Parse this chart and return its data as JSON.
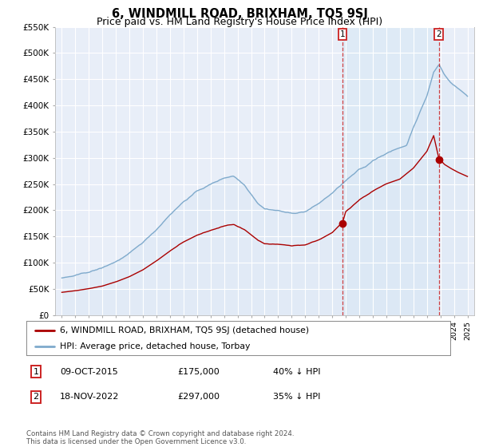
{
  "title": "6, WINDMILL ROAD, BRIXHAM, TQ5 9SJ",
  "subtitle": "Price paid vs. HM Land Registry's House Price Index (HPI)",
  "ylim": [
    0,
    550000
  ],
  "yticks": [
    0,
    50000,
    100000,
    150000,
    200000,
    250000,
    300000,
    350000,
    400000,
    450000,
    500000,
    550000
  ],
  "ytick_labels": [
    "£0",
    "£50K",
    "£100K",
    "£150K",
    "£200K",
    "£250K",
    "£300K",
    "£350K",
    "£400K",
    "£450K",
    "£500K",
    "£550K"
  ],
  "sale1_date": 2015.77,
  "sale1_price": 175000,
  "sale1_label": "09-OCT-2015",
  "sale1_price_label": "£175,000",
  "sale1_pct_label": "40% ↓ HPI",
  "sale2_date": 2022.88,
  "sale2_price": 297000,
  "sale2_label": "18-NOV-2022",
  "sale2_price_label": "£297,000",
  "sale2_pct_label": "35% ↓ HPI",
  "red_line_color": "#aa0000",
  "blue_line_color": "#7faacc",
  "blue_fill_color": "#dce8f5",
  "vline_color": "#cc2222",
  "legend_label_red": "6, WINDMILL ROAD, BRIXHAM, TQ5 9SJ (detached house)",
  "legend_label_blue": "HPI: Average price, detached house, Torbay",
  "footer": "Contains HM Land Registry data © Crown copyright and database right 2024.\nThis data is licensed under the Open Government Licence v3.0.",
  "background_color": "#ffffff",
  "plot_bg_color": "#e8eef8",
  "grid_color": "#ffffff",
  "title_fontsize": 10.5,
  "subtitle_fontsize": 9
}
